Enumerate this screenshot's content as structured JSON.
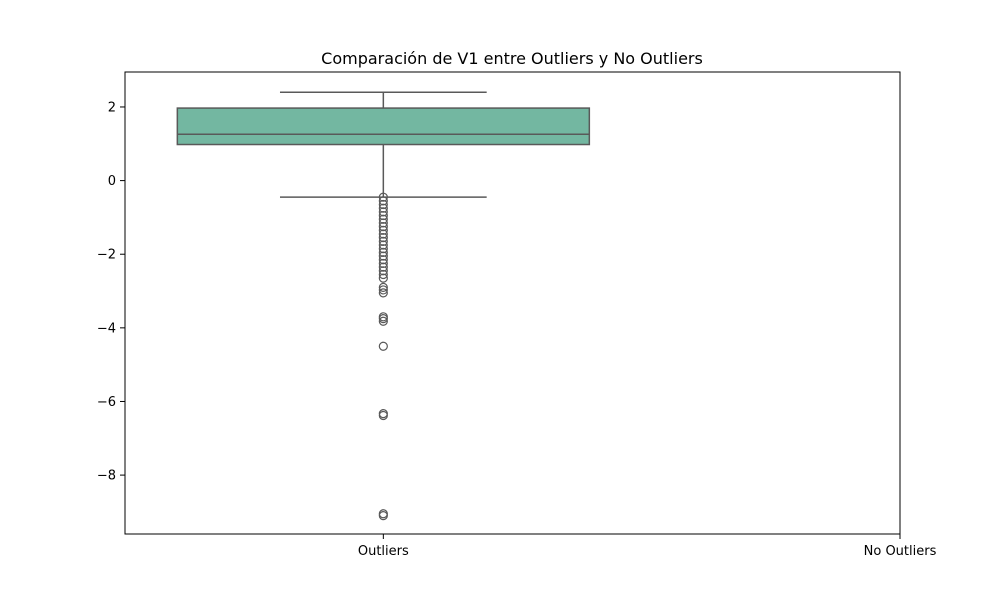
{
  "chart_data": {
    "type": "box",
    "title": "Comparación de V1 entre Outliers y No Outliers",
    "xlabel": "",
    "ylabel": "",
    "categories": [
      "Outliers",
      "No Outliers"
    ],
    "ylim": [
      -9.6,
      2.95
    ],
    "yticks": [
      2,
      0,
      -2,
      -4,
      -6,
      -8
    ],
    "ytick_labels": [
      "2",
      "0",
      "−2",
      "−4",
      "−6",
      "−8"
    ],
    "grid": false,
    "box_color": "#73b7a1",
    "edge_color": "#595959",
    "series": [
      {
        "category": "Outliers",
        "whisker_high": 2.4,
        "q3": 1.97,
        "median": 1.26,
        "q1": 0.98,
        "whisker_low": -0.45,
        "outliers": [
          -0.45,
          -0.55,
          -0.65,
          -0.75,
          -0.85,
          -0.95,
          -1.05,
          -1.15,
          -1.25,
          -1.35,
          -1.45,
          -1.55,
          -1.65,
          -1.75,
          -1.85,
          -1.95,
          -2.05,
          -2.15,
          -2.25,
          -2.35,
          -2.45,
          -2.55,
          -2.65,
          -2.9,
          -2.97,
          -3.05,
          -3.7,
          -3.75,
          -3.82,
          -4.5,
          -6.33,
          -6.38,
          -9.05,
          -9.1
        ]
      },
      {
        "category": "No Outliers",
        "values": []
      }
    ]
  }
}
